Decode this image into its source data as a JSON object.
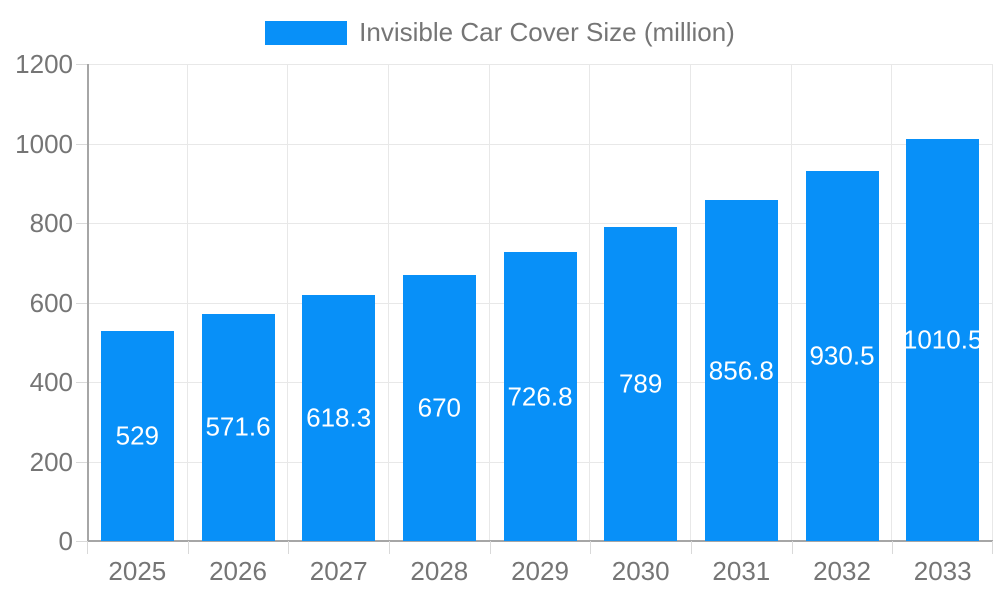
{
  "legend": {
    "label": "Invisible Car Cover Size (million)"
  },
  "colors": {
    "bar": "#0890F8",
    "grid": "#e8e8e8",
    "axis": "#a6a6a6",
    "tick": "#d9d9d9",
    "text": "#757575",
    "bar_label": "#ffffff",
    "background": "#ffffff"
  },
  "chart_data": {
    "type": "bar",
    "title": "Invisible Car Cover Size (million)",
    "categories": [
      "2025",
      "2026",
      "2027",
      "2028",
      "2029",
      "2030",
      "2031",
      "2032",
      "2033"
    ],
    "values": [
      529,
      571.6,
      618.3,
      670,
      726.8,
      789,
      856.8,
      930.5,
      1010.5
    ],
    "value_labels": [
      "529",
      "571.6",
      "618.3",
      "670",
      "726.8",
      "789",
      "856.8",
      "930.5",
      "1010.5"
    ],
    "xlabel": "",
    "ylabel": "",
    "ylim": [
      0,
      1200
    ],
    "yticks": [
      0,
      200,
      400,
      600,
      800,
      1000,
      1200
    ],
    "grid": true,
    "legend_position": "top-center",
    "bar_label_position": "inside-center"
  }
}
